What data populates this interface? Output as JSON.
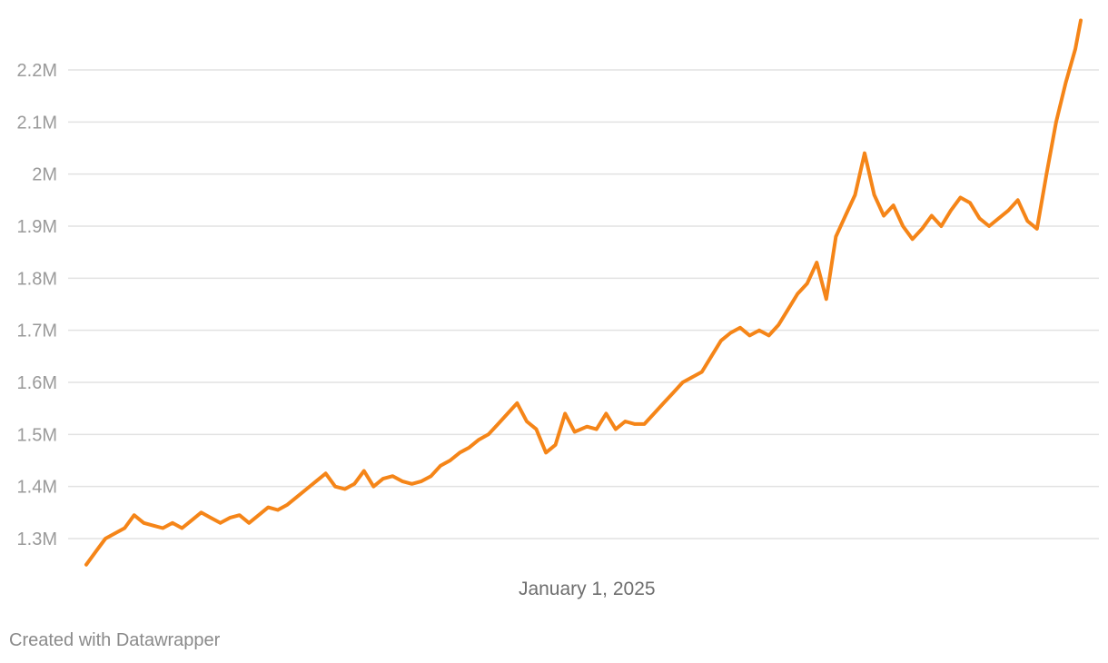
{
  "chart_data": {
    "type": "line",
    "title": "",
    "xlabel": "",
    "ylabel": "",
    "x_range": [
      "2024-01-01",
      "2025-12-28"
    ],
    "ylim": [
      1250000,
      2300000
    ],
    "grid": "horizontal",
    "y_ticks": [
      {
        "value": 1300000,
        "label": "1.3M"
      },
      {
        "value": 1400000,
        "label": "1.4M"
      },
      {
        "value": 1500000,
        "label": "1.5M"
      },
      {
        "value": 1600000,
        "label": "1.6M"
      },
      {
        "value": 1700000,
        "label": "1.7M"
      },
      {
        "value": 1800000,
        "label": "1.8M"
      },
      {
        "value": 1900000,
        "label": "1.9M"
      },
      {
        "value": 2000000,
        "label": "2M"
      },
      {
        "value": 2100000,
        "label": "2.1M"
      },
      {
        "value": 2200000,
        "label": "2.2M"
      }
    ],
    "x_ticks": [
      {
        "value": "2025-01-01",
        "label": "January 1, 2025"
      }
    ],
    "line_color": "#f58518",
    "series": [
      {
        "points": [
          [
            "2024-01-01",
            1250000
          ],
          [
            "2024-01-08",
            1275000
          ],
          [
            "2024-01-15",
            1300000
          ],
          [
            "2024-01-22",
            1310000
          ],
          [
            "2024-01-29",
            1320000
          ],
          [
            "2024-02-05",
            1345000
          ],
          [
            "2024-02-12",
            1330000
          ],
          [
            "2024-02-19",
            1325000
          ],
          [
            "2024-02-26",
            1320000
          ],
          [
            "2024-03-04",
            1330000
          ],
          [
            "2024-03-11",
            1320000
          ],
          [
            "2024-03-18",
            1335000
          ],
          [
            "2024-03-25",
            1350000
          ],
          [
            "2024-04-01",
            1340000
          ],
          [
            "2024-04-08",
            1330000
          ],
          [
            "2024-04-15",
            1340000
          ],
          [
            "2024-04-22",
            1345000
          ],
          [
            "2024-04-29",
            1330000
          ],
          [
            "2024-05-06",
            1345000
          ],
          [
            "2024-05-13",
            1360000
          ],
          [
            "2024-05-20",
            1355000
          ],
          [
            "2024-05-27",
            1365000
          ],
          [
            "2024-06-03",
            1380000
          ],
          [
            "2024-06-10",
            1395000
          ],
          [
            "2024-06-17",
            1410000
          ],
          [
            "2024-06-24",
            1425000
          ],
          [
            "2024-07-01",
            1400000
          ],
          [
            "2024-07-08",
            1395000
          ],
          [
            "2024-07-15",
            1405000
          ],
          [
            "2024-07-22",
            1430000
          ],
          [
            "2024-07-29",
            1400000
          ],
          [
            "2024-08-05",
            1415000
          ],
          [
            "2024-08-12",
            1420000
          ],
          [
            "2024-08-19",
            1410000
          ],
          [
            "2024-08-26",
            1405000
          ],
          [
            "2024-09-02",
            1410000
          ],
          [
            "2024-09-09",
            1420000
          ],
          [
            "2024-09-16",
            1440000
          ],
          [
            "2024-09-23",
            1450000
          ],
          [
            "2024-09-30",
            1465000
          ],
          [
            "2024-10-07",
            1475000
          ],
          [
            "2024-10-14",
            1490000
          ],
          [
            "2024-10-21",
            1500000
          ],
          [
            "2024-10-28",
            1520000
          ],
          [
            "2024-11-04",
            1540000
          ],
          [
            "2024-11-11",
            1560000
          ],
          [
            "2024-11-18",
            1525000
          ],
          [
            "2024-11-25",
            1510000
          ],
          [
            "2024-12-02",
            1465000
          ],
          [
            "2024-12-09",
            1480000
          ],
          [
            "2024-12-16",
            1540000
          ],
          [
            "2024-12-23",
            1505000
          ],
          [
            "2025-01-01",
            1515000
          ],
          [
            "2025-01-08",
            1510000
          ],
          [
            "2025-01-15",
            1540000
          ],
          [
            "2025-01-22",
            1510000
          ],
          [
            "2025-01-29",
            1525000
          ],
          [
            "2025-02-05",
            1520000
          ],
          [
            "2025-02-12",
            1520000
          ],
          [
            "2025-02-19",
            1540000
          ],
          [
            "2025-02-26",
            1560000
          ],
          [
            "2025-03-05",
            1580000
          ],
          [
            "2025-03-12",
            1600000
          ],
          [
            "2025-03-19",
            1610000
          ],
          [
            "2025-03-26",
            1620000
          ],
          [
            "2025-04-02",
            1650000
          ],
          [
            "2025-04-09",
            1680000
          ],
          [
            "2025-04-16",
            1695000
          ],
          [
            "2025-04-23",
            1705000
          ],
          [
            "2025-04-30",
            1690000
          ],
          [
            "2025-05-07",
            1700000
          ],
          [
            "2025-05-14",
            1690000
          ],
          [
            "2025-05-21",
            1710000
          ],
          [
            "2025-05-28",
            1740000
          ],
          [
            "2025-06-04",
            1770000
          ],
          [
            "2025-06-11",
            1790000
          ],
          [
            "2025-06-18",
            1830000
          ],
          [
            "2025-06-25",
            1760000
          ],
          [
            "2025-07-02",
            1880000
          ],
          [
            "2025-07-09",
            1920000
          ],
          [
            "2025-07-16",
            1960000
          ],
          [
            "2025-07-23",
            2040000
          ],
          [
            "2025-07-30",
            1960000
          ],
          [
            "2025-08-06",
            1920000
          ],
          [
            "2025-08-13",
            1940000
          ],
          [
            "2025-08-20",
            1900000
          ],
          [
            "2025-08-27",
            1875000
          ],
          [
            "2025-09-03",
            1895000
          ],
          [
            "2025-09-10",
            1920000
          ],
          [
            "2025-09-17",
            1900000
          ],
          [
            "2025-09-24",
            1930000
          ],
          [
            "2025-10-01",
            1955000
          ],
          [
            "2025-10-08",
            1945000
          ],
          [
            "2025-10-15",
            1915000
          ],
          [
            "2025-10-22",
            1900000
          ],
          [
            "2025-10-29",
            1915000
          ],
          [
            "2025-11-05",
            1930000
          ],
          [
            "2025-11-12",
            1950000
          ],
          [
            "2025-11-19",
            1910000
          ],
          [
            "2025-11-26",
            1895000
          ],
          [
            "2025-12-03",
            2000000
          ],
          [
            "2025-12-10",
            2100000
          ],
          [
            "2025-12-17",
            2175000
          ],
          [
            "2025-12-24",
            2240000
          ],
          [
            "2025-12-28",
            2295000
          ]
        ]
      }
    ]
  },
  "footer": {
    "credit": "Created with Datawrapper"
  }
}
